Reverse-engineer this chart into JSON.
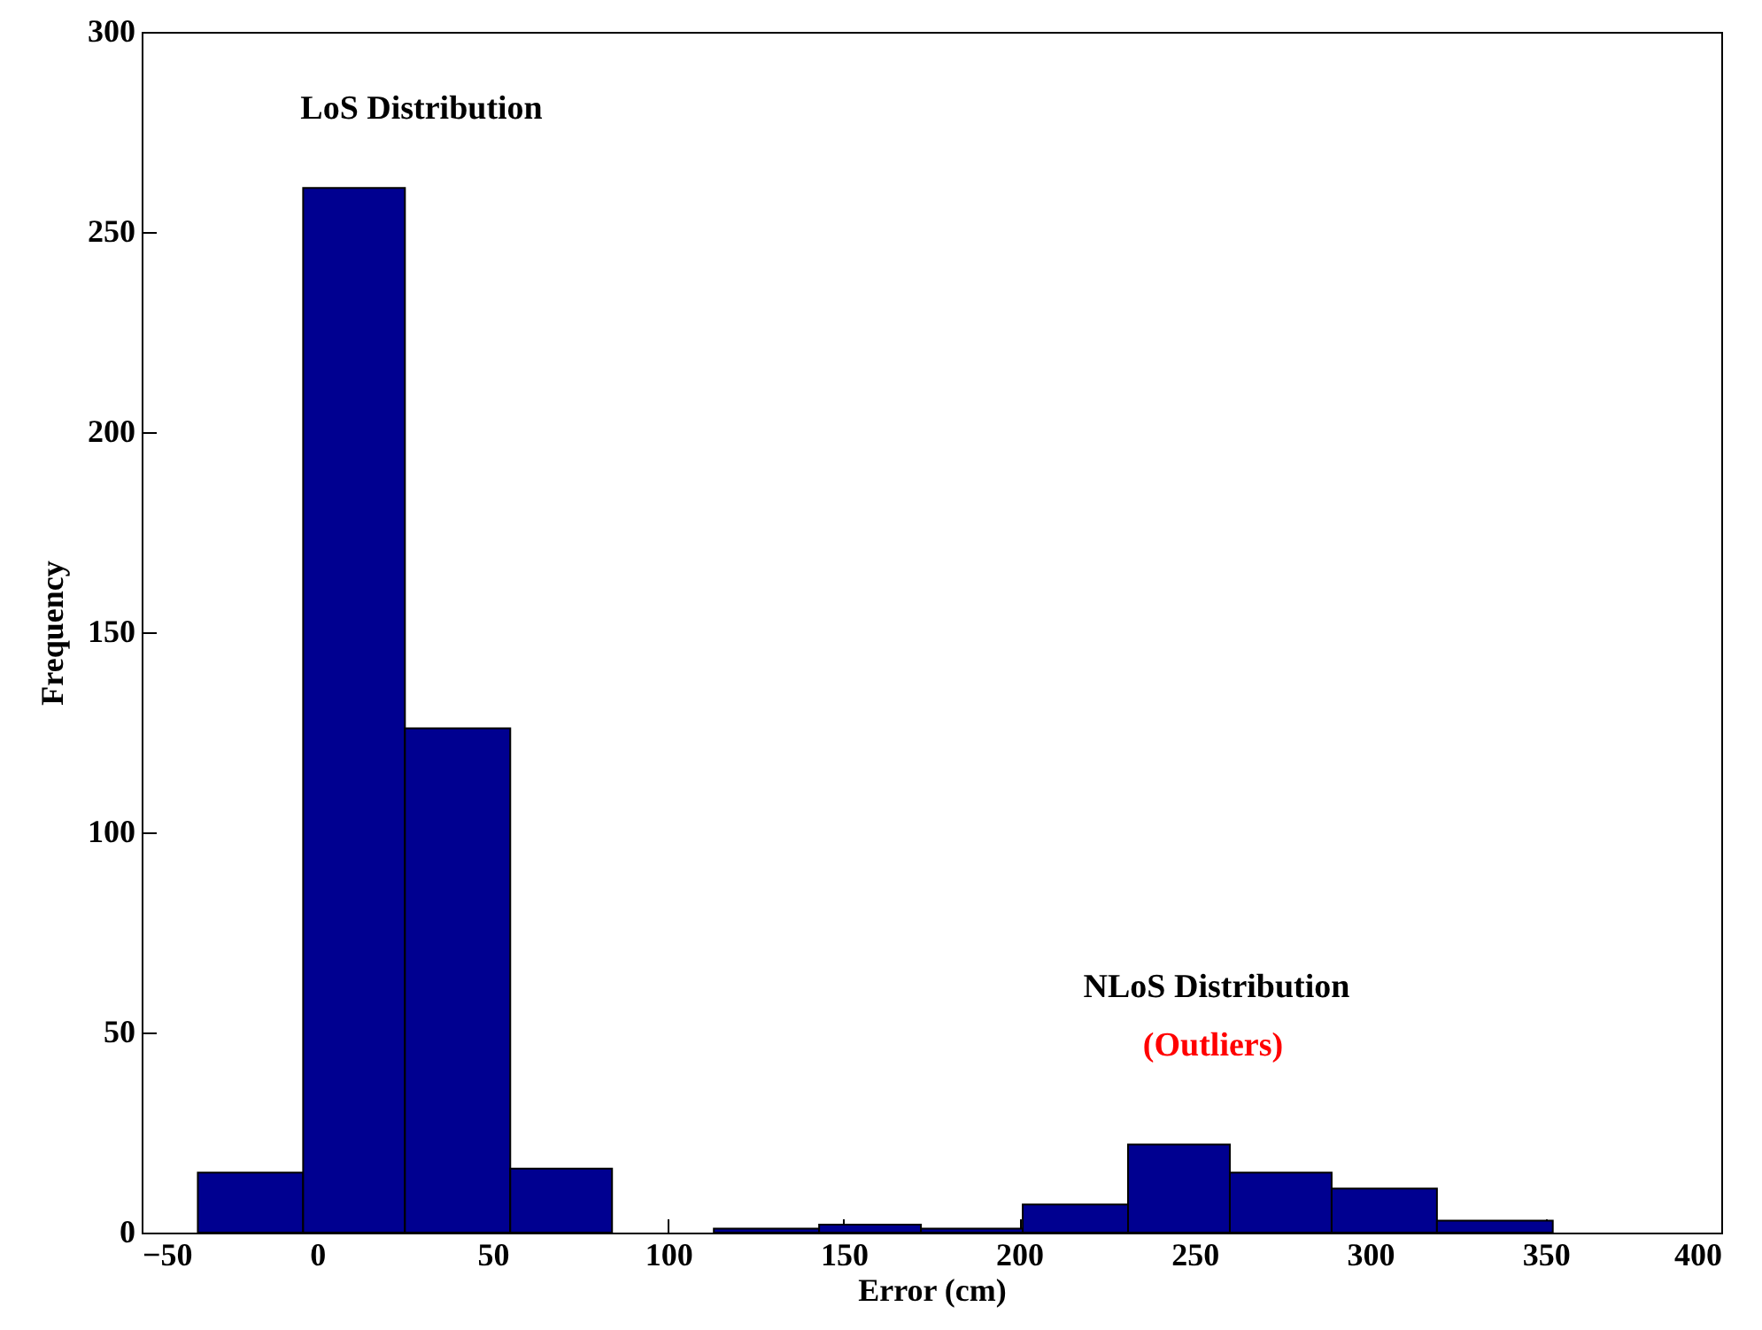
{
  "chart_data": {
    "type": "histogram",
    "xlabel": "Error (cm)",
    "ylabel": "Frequency",
    "bins": [
      -34,
      -4,
      25,
      55,
      84,
      113,
      143,
      172,
      201,
      231,
      260,
      289,
      319,
      352
    ],
    "values": [
      15,
      261,
      126,
      16,
      0,
      1,
      2,
      1,
      7,
      22,
      15,
      11,
      3
    ],
    "color": "#000090",
    "xlim": [
      -50,
      400
    ],
    "xticks": [
      -50,
      0,
      50,
      100,
      150,
      200,
      250,
      300,
      350,
      400
    ],
    "ylim": [
      0,
      300
    ],
    "yticks": [
      0,
      50,
      100,
      150,
      200,
      250,
      300
    ],
    "grid": false,
    "annotations": [
      "LoS Distribution",
      "NLoS Distribution",
      "(Outliers)"
    ]
  }
}
